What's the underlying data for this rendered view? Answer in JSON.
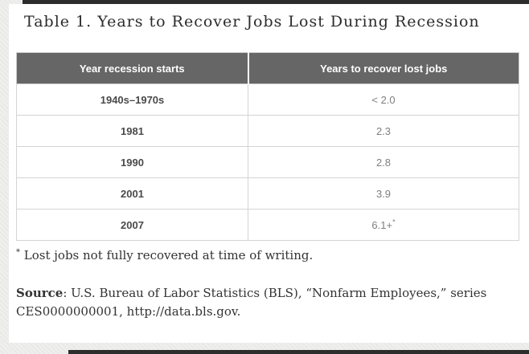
{
  "title": "Table 1. Years to Recover Jobs Lost During Recession",
  "table": {
    "headers": [
      "Year recession starts",
      "Years to recover lost jobs"
    ],
    "rows": [
      {
        "year": "1940s–1970s",
        "years": "< 2.0",
        "sup": ""
      },
      {
        "year": "1981",
        "years": "2.3",
        "sup": ""
      },
      {
        "year": "1990",
        "years": "2.8",
        "sup": ""
      },
      {
        "year": "2001",
        "years": "3.9",
        "sup": ""
      },
      {
        "year": "2007",
        "years": "6.1+",
        "sup": "*"
      }
    ]
  },
  "footnote": {
    "marker": "*",
    "text": "Lost jobs not fully recovered at time of writing."
  },
  "source": {
    "label": "Source",
    "line1": ": U.S. Bureau of Labor Statistics (BLS), “Nonfarm Employees,” series",
    "line2": "CES0000000001, http://data.bls.gov."
  },
  "colors": {
    "page_background": "#ebebe9",
    "card_background": "#ffffff",
    "header_background": "#666666",
    "header_text": "#ffffff",
    "row_label_text": "#4a4a4a",
    "row_value_text": "#7f7f7f",
    "table_border": "#d4d4d4",
    "title_text": "#2b2b2b",
    "body_text": "#333333",
    "window_edge": "#2d2d2d"
  },
  "chart_data": {
    "type": "table",
    "title": "Table 1. Years to Recover Jobs Lost During Recession",
    "columns": [
      "Year recession starts",
      "Years to recover lost jobs"
    ],
    "rows": [
      [
        "1940s–1970s",
        "< 2.0"
      ],
      [
        "1981",
        "2.3"
      ],
      [
        "1990",
        "2.8"
      ],
      [
        "2001",
        "3.9"
      ],
      [
        "2007",
        "6.1+*"
      ]
    ],
    "footnote": "* Lost jobs not fully recovered at time of writing.",
    "source": "Source: U.S. Bureau of Labor Statistics (BLS), “Nonfarm Employees,” series CES0000000001, http://data.bls.gov."
  }
}
